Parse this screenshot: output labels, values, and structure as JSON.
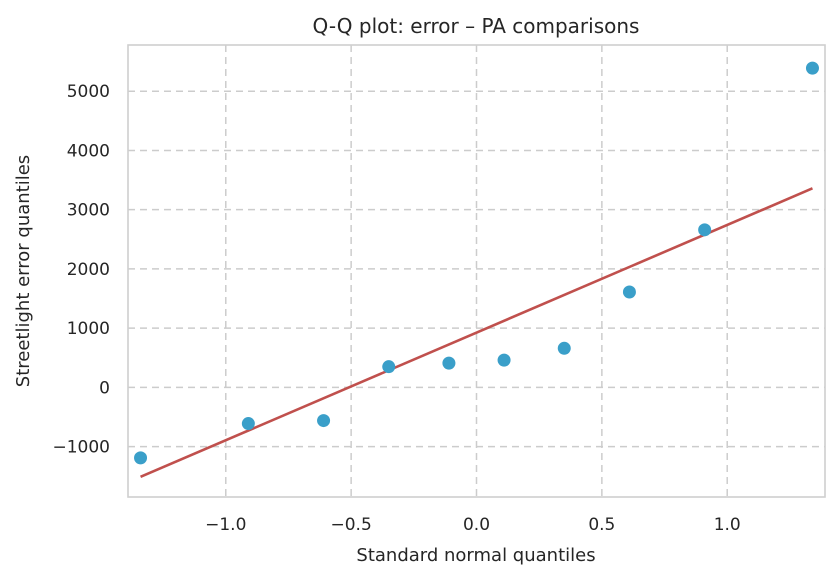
{
  "chart_data": {
    "type": "scatter",
    "title": "Q-Q plot: error – PA comparisons",
    "xlabel": "Standard normal quantiles",
    "ylabel": "Streetlight error quantiles",
    "xlim": [
      -1.39,
      1.39
    ],
    "ylim": [
      -1850,
      5780
    ],
    "x_ticks": [
      -1.0,
      -0.5,
      0.0,
      0.5,
      1.0
    ],
    "x_tick_labels": [
      "−1.0",
      "−0.5",
      "0.0",
      "0.5",
      "1.0"
    ],
    "y_ticks": [
      -1000,
      0,
      1000,
      2000,
      3000,
      4000,
      5000
    ],
    "y_tick_labels": [
      "−1000",
      "0",
      "1000",
      "2000",
      "3000",
      "4000",
      "5000"
    ],
    "grid": true,
    "series": [
      {
        "kind": "points",
        "color": "#3a9fc9",
        "points": [
          [
            -1.34,
            -1190
          ],
          [
            -0.91,
            -610
          ],
          [
            -0.61,
            -560
          ],
          [
            -0.35,
            350
          ],
          [
            -0.11,
            410
          ],
          [
            0.11,
            460
          ],
          [
            0.35,
            660
          ],
          [
            0.61,
            1610
          ],
          [
            0.91,
            2660
          ],
          [
            1.34,
            5390
          ]
        ]
      },
      {
        "kind": "fit-line",
        "color": "#c0504d",
        "points": [
          [
            -1.34,
            -1510
          ],
          [
            1.34,
            3360
          ]
        ]
      }
    ]
  }
}
